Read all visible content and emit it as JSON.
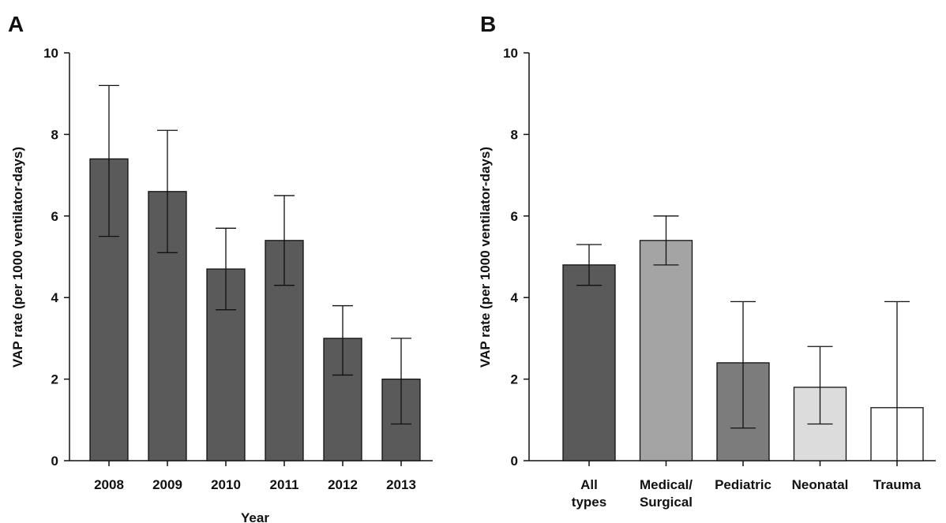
{
  "chart_data": [
    {
      "panel": "A",
      "type": "bar",
      "xlabel": "Year",
      "ylabel": "VAP rate (per 1000 ventilator-days)",
      "ylim": [
        0,
        10
      ],
      "yticks": [
        0,
        2,
        4,
        6,
        8,
        10
      ],
      "categories": [
        "2008",
        "2009",
        "2010",
        "2011",
        "2012",
        "2013"
      ],
      "values": [
        7.4,
        6.6,
        4.7,
        5.4,
        3.0,
        2.0
      ],
      "error_low": [
        5.5,
        5.1,
        3.7,
        4.3,
        2.1,
        0.9
      ],
      "error_high": [
        9.2,
        8.1,
        5.7,
        6.5,
        3.8,
        3.0
      ],
      "colors": [
        "#5a5a5a",
        "#5a5a5a",
        "#5a5a5a",
        "#5a5a5a",
        "#5a5a5a",
        "#5a5a5a"
      ]
    },
    {
      "panel": "B",
      "type": "bar",
      "xlabel": "",
      "ylabel": "VAP rate (per 1000 ventilator-days)",
      "ylim": [
        0,
        10
      ],
      "yticks": [
        0,
        2,
        4,
        6,
        8,
        10
      ],
      "categories": [
        [
          "All",
          "types"
        ],
        [
          "Medical/",
          "Surgical"
        ],
        [
          "Pediatric"
        ],
        [
          "Neonatal"
        ],
        [
          "Trauma"
        ]
      ],
      "values": [
        4.8,
        5.4,
        2.4,
        1.8,
        1.3
      ],
      "error_low": [
        4.3,
        4.8,
        0.8,
        0.9,
        0.0
      ],
      "error_high": [
        5.3,
        6.0,
        3.9,
        2.8,
        3.9
      ],
      "colors": [
        "#5a5a5a",
        "#a4a4a4",
        "#7c7c7c",
        "#dcdcdc",
        "#ffffff"
      ]
    }
  ]
}
